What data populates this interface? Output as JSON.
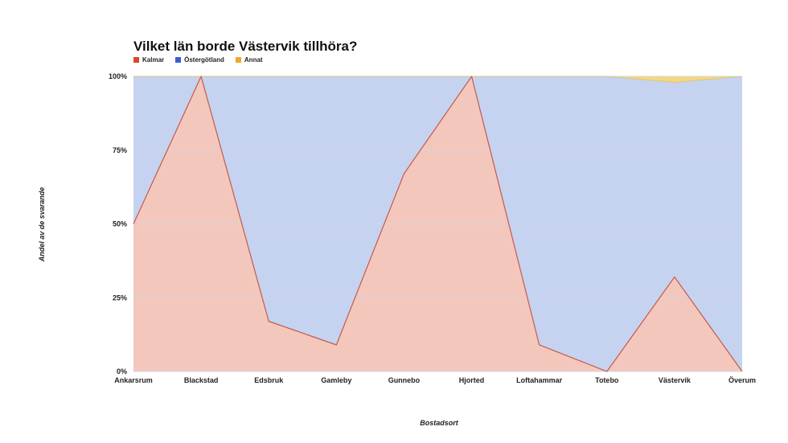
{
  "colors": {
    "kalmar_fill": "#f4c7bd",
    "kalmar_line": "#c45a4a",
    "kalmar_legend": "#d9482b",
    "ostergotland_fill": "#c5d3f0",
    "ostergotland_legend": "#3a5fcf",
    "annat_fill": "#f7d77e",
    "annat_legend": "#f2a72a",
    "grid": "#cfd6e4"
  },
  "chart_data": {
    "type": "area",
    "stacked": true,
    "title": "Vilket län borde Västervik tillhöra?",
    "xlabel": "Bostadsort",
    "ylabel": "Andel av de svarande",
    "ylim": [
      0,
      100
    ],
    "yticks": [
      "0%",
      "25%",
      "50%",
      "75%",
      "100%"
    ],
    "ytick_values": [
      0,
      25,
      50,
      75,
      100
    ],
    "legend_position": "top-left",
    "categories": [
      "Ankarsrum",
      "Blackstad",
      "Edsbruk",
      "Gamleby",
      "Gunnebo",
      "Hjorted",
      "Loftahammar",
      "Totebo",
      "Västervik",
      "Överum"
    ],
    "series": [
      {
        "name": "Kalmar",
        "values": [
          50,
          100,
          17,
          9,
          67,
          100,
          9,
          0,
          32,
          0
        ]
      },
      {
        "name": "Östergötland",
        "values": [
          50,
          0,
          83,
          91,
          33,
          0,
          91,
          100,
          66,
          100
        ]
      },
      {
        "name": "Annat",
        "values": [
          0,
          0,
          0,
          0,
          0,
          0,
          0,
          0,
          2,
          0
        ]
      }
    ]
  }
}
